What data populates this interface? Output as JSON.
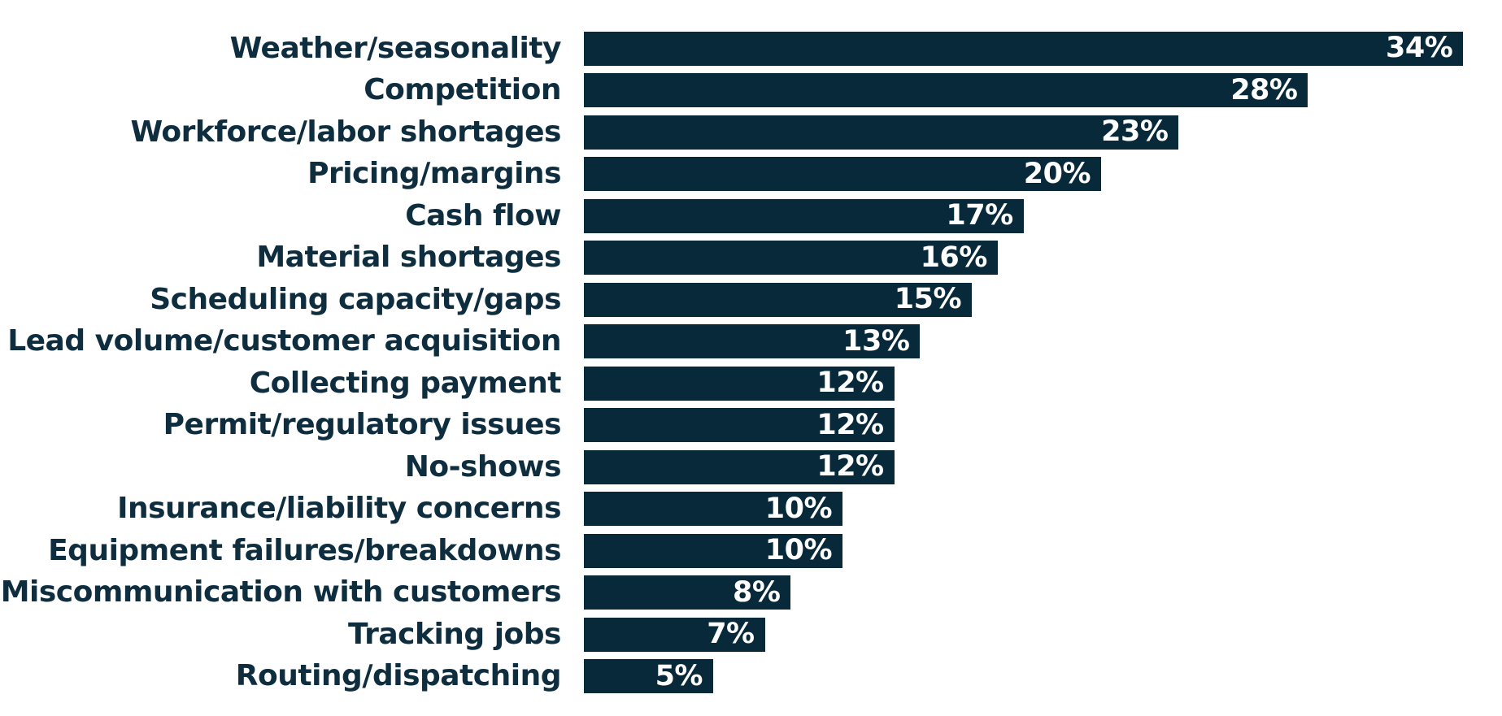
{
  "chart_data": {
    "type": "bar",
    "orientation": "horizontal",
    "title": "",
    "xlabel": "",
    "ylabel": "",
    "grid": false,
    "legend": null,
    "xlim": [
      0,
      35.5
    ],
    "unit": "%",
    "categories": [
      "Weather/seasonality",
      "Competition",
      "Workforce/labor shortages",
      "Pricing/margins",
      "Cash flow",
      "Material shortages",
      "Scheduling capacity/gaps",
      "Lead volume/customer acquisition",
      "Collecting payment",
      "Permit/regulatory issues",
      "No-shows",
      "Insurance/liability concerns",
      "Equipment failures/breakdowns",
      "Miscommunication with customers",
      "Tracking jobs",
      "Routing/dispatching"
    ],
    "values": [
      34,
      28,
      23,
      20,
      17,
      16,
      15,
      13,
      12,
      12,
      12,
      10,
      10,
      8,
      7,
      5
    ],
    "value_labels": [
      "34%",
      "28%",
      "23%",
      "20%",
      "17%",
      "16%",
      "15%",
      "13%",
      "12%",
      "12%",
      "12%",
      "10%",
      "10%",
      "8%",
      "7%",
      "5%"
    ],
    "colors": {
      "bar": "#07293a",
      "category_text": "#0e2d3e",
      "value_text": "#ffffff",
      "background": "#ffffff"
    }
  }
}
